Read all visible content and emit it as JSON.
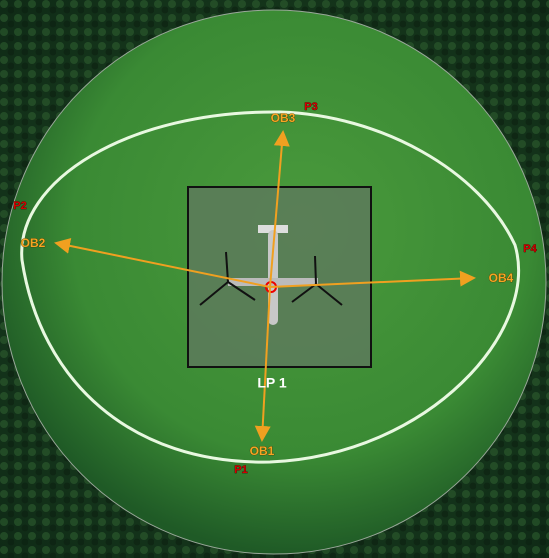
{
  "landing_pad": {
    "label": "LP 1"
  },
  "obstacles": [
    {
      "label": "OB1"
    },
    {
      "label": "OB2"
    },
    {
      "label": "OB3"
    },
    {
      "label": "OB4"
    }
  ],
  "points": [
    {
      "label": "P1"
    },
    {
      "label": "P2"
    },
    {
      "label": "P3"
    },
    {
      "label": "P4"
    }
  ]
}
